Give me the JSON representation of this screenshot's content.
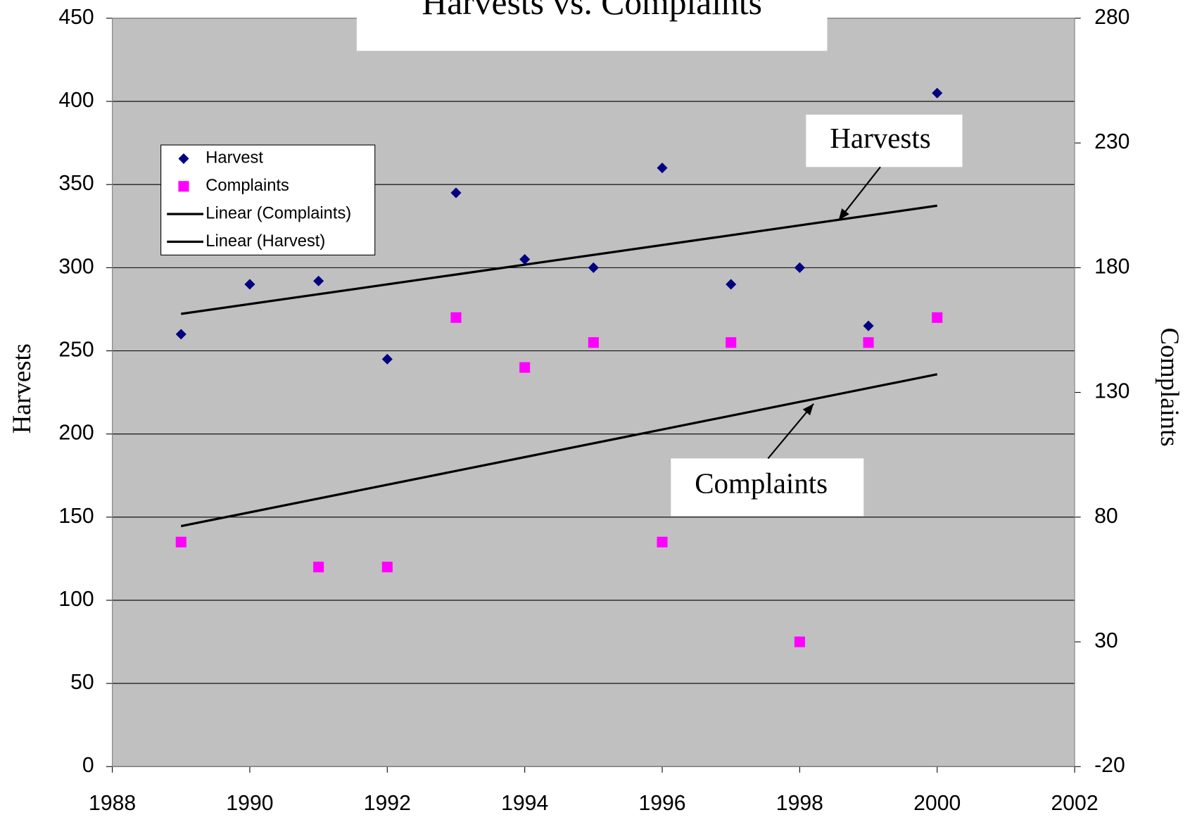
{
  "chart_data": {
    "type": "scatter",
    "title": "Harvests vs. Complaints",
    "y_label": "Harvests",
    "y2_label": "Complaints",
    "x": [
      1989,
      1990,
      1991,
      1992,
      1993,
      1994,
      1995,
      1996,
      1997,
      1998,
      1999,
      2000
    ],
    "series": [
      {
        "name": "Harvest",
        "color": "#000080",
        "marker": "diamond",
        "values": [
          260,
          290,
          292,
          245,
          345,
          305,
          300,
          360,
          290,
          300,
          265,
          405
        ]
      },
      {
        "name": "Complaints",
        "color": "#ff00ff",
        "marker": "square",
        "axis": "y2",
        "values": [
          70,
          null,
          60,
          60,
          160,
          140,
          150,
          70,
          150,
          30,
          150,
          160
        ]
      }
    ],
    "trendlines": [
      {
        "name": "Linear (Complaints)",
        "series": 1,
        "color": "#000000"
      },
      {
        "name": "Linear (Harvest)",
        "series": 0,
        "color": "#000000"
      }
    ],
    "annotations": [
      "Harvests",
      "Complaints"
    ],
    "xlim": [
      1988,
      2002
    ],
    "xticks": [
      1988,
      1990,
      1992,
      1994,
      1996,
      1998,
      2000,
      2002
    ],
    "ylim": [
      0,
      450
    ],
    "yticks": [
      0,
      50,
      100,
      150,
      200,
      250,
      300,
      350,
      400,
      450
    ],
    "y2lim": [
      -20,
      280
    ],
    "y2ticks": [
      -20,
      30,
      80,
      130,
      180,
      230,
      280
    ],
    "grid": true,
    "legend": "upper left",
    "background": "#c0c0c0"
  }
}
